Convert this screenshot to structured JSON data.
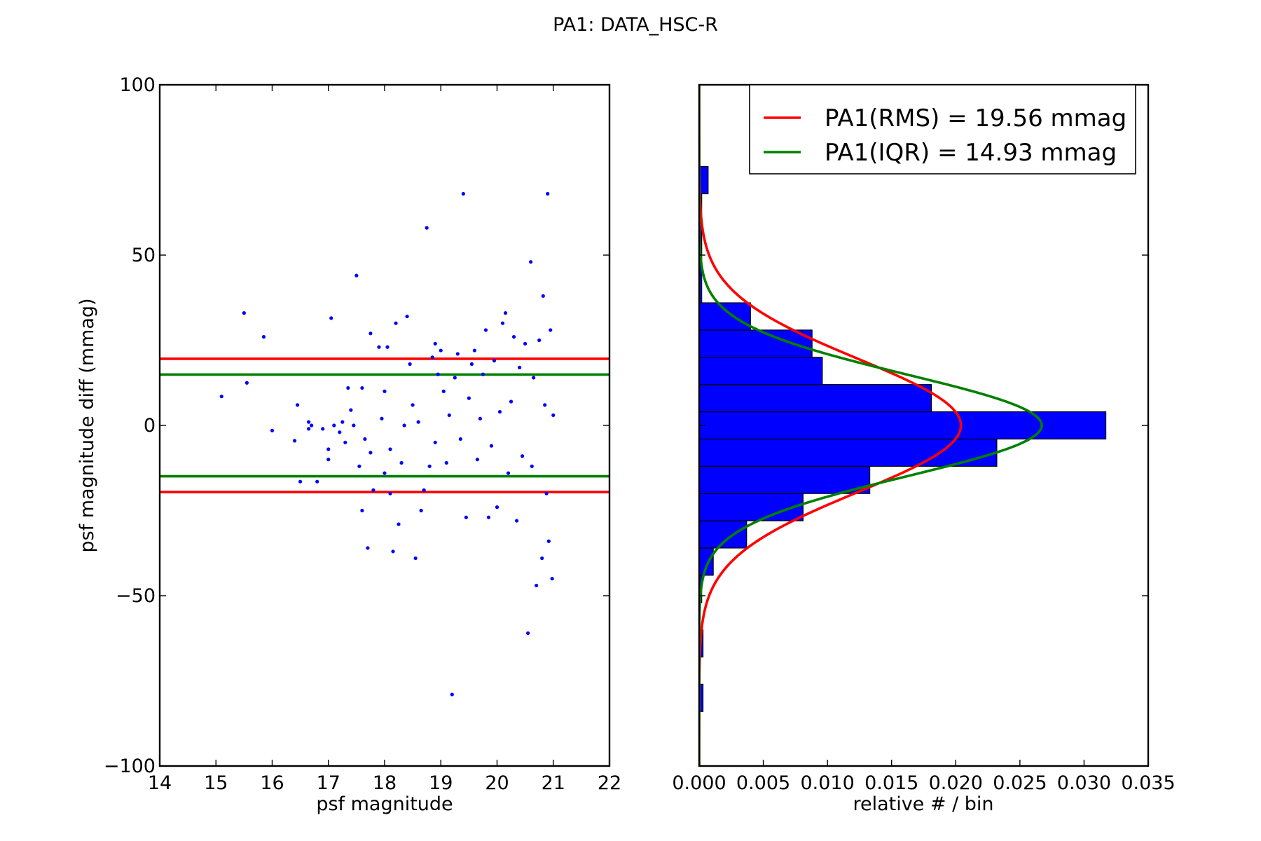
{
  "figure": {
    "title": "PA1: DATA_HSC-R"
  },
  "chart_data": [
    {
      "type": "scatter",
      "xlabel": "psf magnitude",
      "ylabel": "psf magnitude diff (mmag)",
      "xlim": [
        14,
        22
      ],
      "ylim": [
        -100,
        100
      ],
      "xticks": [
        14,
        15,
        16,
        17,
        18,
        19,
        20,
        21,
        22
      ],
      "xtick_labels": [
        "14",
        "15",
        "16",
        "17",
        "18",
        "19",
        "20",
        "21",
        "22"
      ],
      "yticks": [
        100,
        50,
        0,
        -50,
        -100
      ],
      "ytick_labels": [
        "100",
        "50",
        "0",
        "−50",
        "−100"
      ],
      "marker_color": "#0000ff",
      "points": [
        [
          15.1,
          8.5
        ],
        [
          15.5,
          33
        ],
        [
          15.55,
          12.5
        ],
        [
          15.85,
          26
        ],
        [
          16.0,
          -1.5
        ],
        [
          16.4,
          -4.5
        ],
        [
          16.45,
          6
        ],
        [
          16.5,
          -16.5
        ],
        [
          16.65,
          -1
        ],
        [
          16.65,
          1
        ],
        [
          16.7,
          0
        ],
        [
          16.8,
          -16.5
        ],
        [
          16.9,
          -1
        ],
        [
          17.05,
          31.5
        ],
        [
          17.0,
          -7
        ],
        [
          17.0,
          -10
        ],
        [
          17.1,
          0
        ],
        [
          17.2,
          -2
        ],
        [
          17.25,
          1
        ],
        [
          17.3,
          -5
        ],
        [
          17.35,
          11
        ],
        [
          17.4,
          4.5
        ],
        [
          17.45,
          0
        ],
        [
          17.5,
          44
        ],
        [
          17.55,
          -12
        ],
        [
          17.6,
          -25
        ],
        [
          17.6,
          11
        ],
        [
          17.65,
          -4
        ],
        [
          17.7,
          -36
        ],
        [
          17.75,
          27
        ],
        [
          17.75,
          -8
        ],
        [
          17.8,
          -19
        ],
        [
          17.9,
          23
        ],
        [
          17.95,
          2
        ],
        [
          18.0,
          10
        ],
        [
          18.0,
          -14
        ],
        [
          18.05,
          23
        ],
        [
          18.1,
          -7
        ],
        [
          18.1,
          -20
        ],
        [
          18.15,
          -37
        ],
        [
          18.2,
          30
        ],
        [
          18.25,
          -29
        ],
        [
          18.3,
          -11
        ],
        [
          18.35,
          0
        ],
        [
          18.4,
          32
        ],
        [
          18.45,
          18
        ],
        [
          18.5,
          6
        ],
        [
          18.55,
          -39
        ],
        [
          18.6,
          1
        ],
        [
          18.65,
          -25
        ],
        [
          18.7,
          -19
        ],
        [
          18.75,
          58
        ],
        [
          18.8,
          -12
        ],
        [
          18.85,
          20
        ],
        [
          18.9,
          24
        ],
        [
          18.9,
          -5
        ],
        [
          18.95,
          15
        ],
        [
          19.0,
          22
        ],
        [
          19.05,
          10
        ],
        [
          19.1,
          -11
        ],
        [
          19.15,
          3
        ],
        [
          19.2,
          -79
        ],
        [
          19.25,
          14
        ],
        [
          19.3,
          21
        ],
        [
          19.35,
          -4
        ],
        [
          19.4,
          68
        ],
        [
          19.45,
          -27
        ],
        [
          19.5,
          8
        ],
        [
          19.55,
          18
        ],
        [
          19.6,
          22
        ],
        [
          19.65,
          -10
        ],
        [
          19.7,
          2
        ],
        [
          19.75,
          15
        ],
        [
          19.8,
          28
        ],
        [
          19.85,
          -27
        ],
        [
          19.9,
          -6
        ],
        [
          19.95,
          19
        ],
        [
          20.0,
          -24
        ],
        [
          20.05,
          4
        ],
        [
          20.1,
          30
        ],
        [
          20.15,
          33
        ],
        [
          20.2,
          -14
        ],
        [
          20.25,
          7
        ],
        [
          20.3,
          26
        ],
        [
          20.35,
          -28
        ],
        [
          20.4,
          17
        ],
        [
          20.45,
          -9
        ],
        [
          20.5,
          24
        ],
        [
          20.55,
          -61
        ],
        [
          20.6,
          48
        ],
        [
          20.62,
          -12
        ],
        [
          20.65,
          14
        ],
        [
          20.7,
          -47
        ],
        [
          20.75,
          25
        ],
        [
          20.8,
          -39
        ],
        [
          20.82,
          38
        ],
        [
          20.85,
          6
        ],
        [
          20.88,
          -20
        ],
        [
          20.9,
          68
        ],
        [
          20.92,
          -34
        ],
        [
          20.95,
          28
        ],
        [
          20.98,
          -45
        ],
        [
          21.0,
          3
        ]
      ],
      "hlines": [
        {
          "name": "PA1(RMS) = 19.56 mmag",
          "y": 19.56,
          "color": "#ff0000"
        },
        {
          "name": "PA1(RMS) = 19.56 mmag",
          "y": -19.56,
          "color": "#ff0000"
        },
        {
          "name": "PA1(IQR) = 14.93 mmag",
          "y": 14.93,
          "color": "#008000"
        },
        {
          "name": "PA1(IQR) = 14.93 mmag",
          "y": -14.93,
          "color": "#008000"
        }
      ]
    },
    {
      "type": "bar",
      "orientation": "horizontal",
      "xlabel": "relative # / bin",
      "ylabel": "",
      "xlim": [
        0,
        0.035
      ],
      "ylim": [
        -100,
        100
      ],
      "xticks": [
        0,
        0.005,
        0.01,
        0.015,
        0.02,
        0.025,
        0.03,
        0.035
      ],
      "xtick_labels": [
        "0.000",
        "0.005",
        "0.010",
        "0.015",
        "0.020",
        "0.025",
        "0.030",
        "0.035"
      ],
      "yticks": [
        100,
        50,
        0,
        -50,
        -100
      ],
      "bar_color": "#0000ff",
      "bins": [
        {
          "y0": -84,
          "y1": -76,
          "value": 0.0003
        },
        {
          "y0": -68,
          "y1": -60,
          "value": 0.0003
        },
        {
          "y0": -52,
          "y1": -44,
          "value": 0.0002
        },
        {
          "y0": -44,
          "y1": -36,
          "value": 0.0011
        },
        {
          "y0": -36,
          "y1": -28,
          "value": 0.0037
        },
        {
          "y0": -28,
          "y1": -20,
          "value": 0.0081
        },
        {
          "y0": -20,
          "y1": -12,
          "value": 0.0133
        },
        {
          "y0": -12,
          "y1": -4,
          "value": 0.0232
        },
        {
          "y0": -4,
          "y1": 4,
          "value": 0.0317
        },
        {
          "y0": 4,
          "y1": 12,
          "value": 0.0181
        },
        {
          "y0": 12,
          "y1": 20,
          "value": 0.0096
        },
        {
          "y0": 20,
          "y1": 28,
          "value": 0.0088
        },
        {
          "y0": 28,
          "y1": 36,
          "value": 0.004
        },
        {
          "y0": 36,
          "y1": 44,
          "value": 0.0002
        },
        {
          "y0": 44,
          "y1": 52,
          "value": 0.0002
        },
        {
          "y0": 52,
          "y1": 60,
          "value": 0.0002
        },
        {
          "y0": 60,
          "y1": 68,
          "value": 0.0002
        },
        {
          "y0": 68,
          "y1": 76,
          "value": 0.0007
        }
      ],
      "series": [
        {
          "name": "PA1(RMS) = 19.56 mmag",
          "type": "gaussian",
          "sigma": 19.56,
          "peak": 0.0204,
          "color": "#ff0000"
        },
        {
          "name": "PA1(IQR) = 14.93 mmag",
          "type": "gaussian",
          "sigma": 14.93,
          "peak": 0.0267,
          "color": "#008000"
        }
      ],
      "legend": {
        "placement": "top-right"
      }
    }
  ]
}
